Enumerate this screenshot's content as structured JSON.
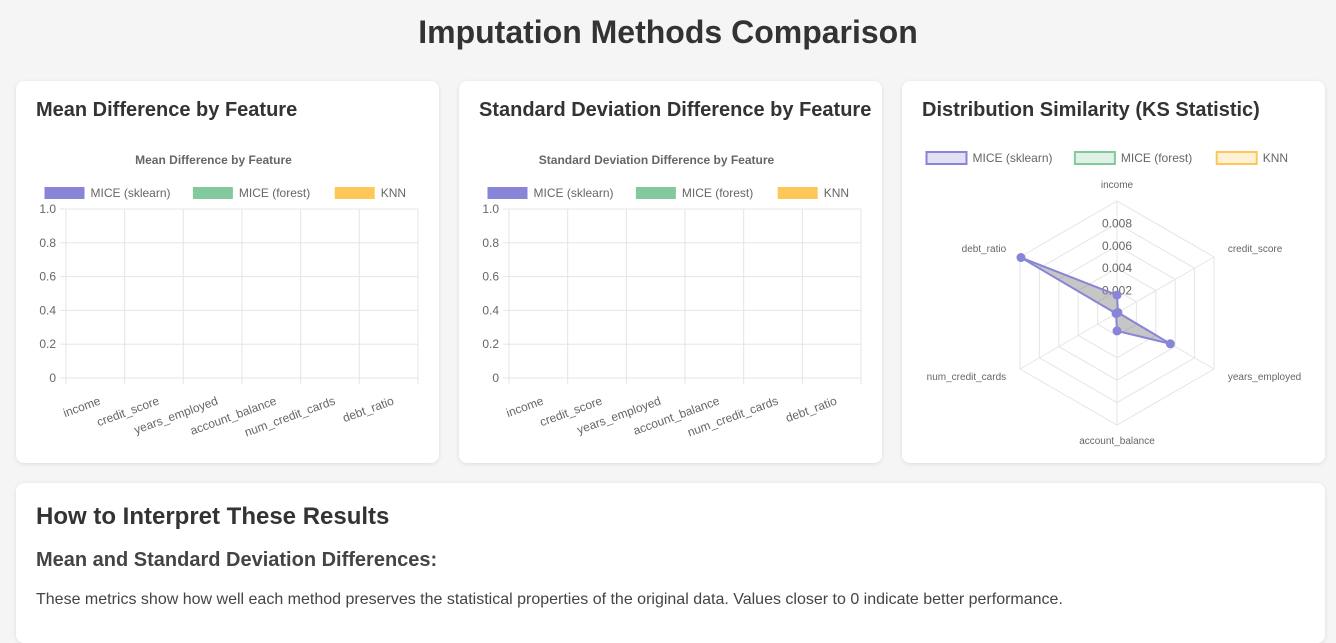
{
  "page": {
    "title": "Imputation Methods Comparison"
  },
  "cards": {
    "mean": {
      "title": "Mean Difference by Feature"
    },
    "std": {
      "title": "Standard Deviation Difference by Feature"
    },
    "ks": {
      "title": "Distribution Similarity (KS Statistic)"
    }
  },
  "chart_data": [
    {
      "type": "bar",
      "title": "Mean Difference by Feature",
      "categories": [
        "income",
        "credit_score",
        "years_employed",
        "account_balance",
        "num_credit_cards",
        "debt_ratio"
      ],
      "series": [
        {
          "name": "MICE (sklearn)",
          "color": "#8884d8",
          "values": [
            0,
            0,
            0,
            0,
            0,
            0
          ]
        },
        {
          "name": "MICE (forest)",
          "color": "#82ca9d",
          "values": [
            0,
            0,
            0,
            0,
            0,
            0
          ]
        },
        {
          "name": "KNN",
          "color": "#ffc658",
          "values": [
            0,
            0,
            0,
            0,
            0,
            0
          ]
        }
      ],
      "yticks": [
        "0",
        "0.2",
        "0.4",
        "0.6",
        "0.8",
        "1.0"
      ],
      "ylim": [
        0,
        1
      ],
      "grid": true,
      "legend": "top"
    },
    {
      "type": "bar",
      "title": "Standard Deviation Difference by Feature",
      "categories": [
        "income",
        "credit_score",
        "years_employed",
        "account_balance",
        "num_credit_cards",
        "debt_ratio"
      ],
      "series": [
        {
          "name": "MICE (sklearn)",
          "color": "#8884d8",
          "values": [
            0,
            0,
            0,
            0,
            0,
            0
          ]
        },
        {
          "name": "MICE (forest)",
          "color": "#82ca9d",
          "values": [
            0,
            0,
            0,
            0,
            0,
            0
          ]
        },
        {
          "name": "KNN",
          "color": "#ffc658",
          "values": [
            0,
            0,
            0,
            0,
            0,
            0
          ]
        }
      ],
      "yticks": [
        "0",
        "0.2",
        "0.4",
        "0.6",
        "0.8",
        "1.0"
      ],
      "ylim": [
        0,
        1
      ],
      "grid": true,
      "legend": "top"
    },
    {
      "type": "radar",
      "categories": [
        "income",
        "credit_score",
        "years_employed",
        "account_balance",
        "num_credit_cards",
        "debt_ratio"
      ],
      "series": [
        {
          "name": "MICE (sklearn)",
          "color": "#8884d8",
          "values": [
            0.0016,
            0.0001,
            0.0055,
            0.0016,
            0.0001,
            0.0099
          ]
        },
        {
          "name": "MICE (forest)",
          "color": "#82ca9d",
          "values": [
            0,
            0,
            0,
            0,
            0,
            0
          ]
        },
        {
          "name": "KNN",
          "color": "#ffc658",
          "values": [
            0,
            0,
            0,
            0,
            0,
            0
          ]
        }
      ],
      "rticks": [
        "0.002",
        "0.004",
        "0.006",
        "0.008"
      ],
      "rlim": [
        0,
        0.01
      ],
      "legend": "top"
    }
  ],
  "interpretation": {
    "title": "How to Interpret These Results",
    "subtitle": "Mean and Standard Deviation Differences:",
    "text": "These metrics show how well each method preserves the statistical properties of the original data. Values closer to 0 indicate better performance."
  }
}
